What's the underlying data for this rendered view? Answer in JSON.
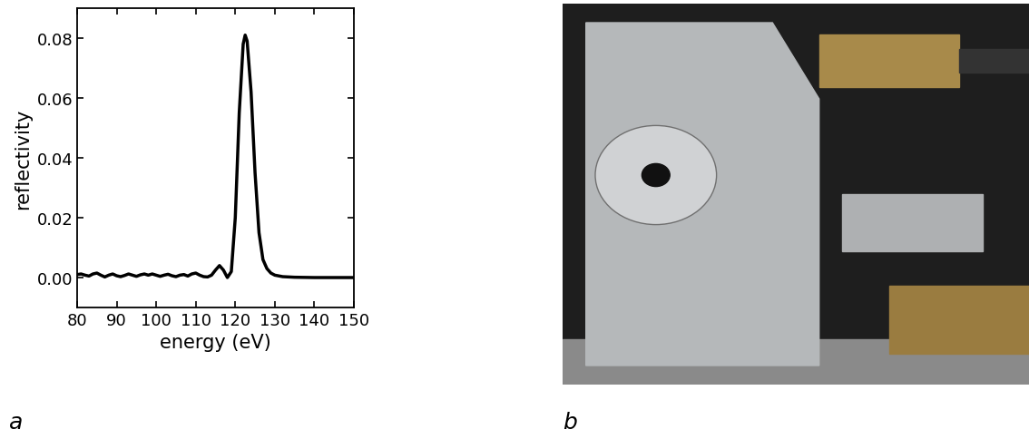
{
  "chart_data": {
    "type": "line",
    "color": "#000000",
    "x_label": "energy (eV)",
    "y_label": "reflectivity",
    "x": [
      80,
      81,
      82,
      83,
      84,
      85,
      86,
      87,
      88,
      89,
      90,
      91,
      92,
      93,
      94,
      95,
      96,
      97,
      98,
      99,
      100,
      101,
      102,
      103,
      104,
      105,
      106,
      107,
      108,
      109,
      110,
      111,
      112,
      113,
      114,
      115,
      116,
      117,
      118,
      119,
      120,
      121,
      122,
      122.5,
      123,
      124,
      125,
      126,
      127,
      128,
      129,
      130,
      132,
      135,
      140,
      145,
      150
    ],
    "values": [
      0.001,
      0.0012,
      0.0008,
      0.0005,
      0.0012,
      0.0015,
      0.0008,
      0.0002,
      0.0008,
      0.0012,
      0.0006,
      0.0003,
      0.0007,
      0.0012,
      0.0008,
      0.0004,
      0.0009,
      0.0012,
      0.0008,
      0.0012,
      0.0008,
      0.0004,
      0.0008,
      0.0011,
      0.0006,
      0.0003,
      0.0008,
      0.001,
      0.0005,
      0.0012,
      0.0015,
      0.0008,
      0.0003,
      0.0002,
      0.0008,
      0.0025,
      0.004,
      0.0025,
      0.0,
      0.002,
      0.02,
      0.055,
      0.078,
      0.081,
      0.079,
      0.062,
      0.035,
      0.015,
      0.006,
      0.003,
      0.0015,
      0.0008,
      0.0003,
      0.0001,
      0.0,
      0.0,
      0.0
    ],
    "xlim": [
      80,
      150
    ],
    "xticks": [
      80,
      90,
      100,
      110,
      120,
      130,
      140,
      150
    ],
    "ylim": [
      -0.01,
      0.09
    ],
    "yticks": [
      {
        "value": 0,
        "label": "0.00"
      },
      {
        "value": 0.02,
        "label": "0.02"
      },
      {
        "value": 0.04,
        "label": "0.04"
      },
      {
        "value": 0.06,
        "label": "0.06"
      },
      {
        "value": 0.08,
        "label": "0.08"
      }
    ],
    "grid": false
  },
  "panel_labels": [
    "a",
    "b"
  ]
}
